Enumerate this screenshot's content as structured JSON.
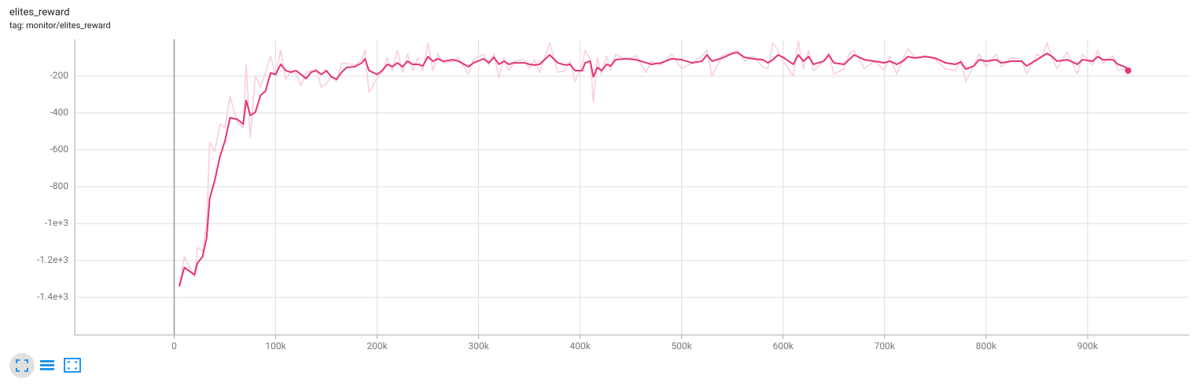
{
  "chart_data": {
    "type": "line",
    "title": "elites_reward",
    "subtitle": "tag: monitor/elites_reward",
    "x": [
      5000,
      10000,
      20000,
      23000,
      28000,
      32000,
      35000,
      40000,
      45000,
      50000,
      55000,
      62000,
      68000,
      71000,
      75000,
      80000,
      85000,
      90000,
      95000,
      100000,
      105000,
      110000,
      115000,
      120000,
      125000,
      130000,
      135000,
      140000,
      145000,
      150000,
      155000,
      160000,
      165000,
      170000,
      178000,
      185000,
      188000,
      192000,
      200000,
      205000,
      210000,
      215000,
      220000,
      225000,
      230000,
      235000,
      240000,
      245000,
      250000,
      255000,
      260000,
      265000,
      275000,
      280000,
      290000,
      295000,
      305000,
      310000,
      315000,
      320000,
      325000,
      330000,
      335000,
      345000,
      350000,
      355000,
      360000,
      370000,
      378000,
      385000,
      390000,
      395000,
      402000,
      405000,
      410000,
      413000,
      417000,
      421000,
      426000,
      430000,
      435000,
      445000,
      455000,
      465000,
      470000,
      480000,
      490000,
      500000,
      510000,
      520000,
      525000,
      530000,
      540000,
      550000,
      555000,
      562000,
      570000,
      580000,
      585000,
      590000,
      595000,
      600000,
      610000,
      615000,
      620000,
      625000,
      630000,
      640000,
      645000,
      650000,
      660000,
      665000,
      670000,
      680000,
      690000,
      700000,
      705000,
      712000,
      718000,
      723000,
      730000,
      740000,
      750000,
      760000,
      770000,
      775000,
      780000,
      788000,
      793000,
      800000,
      810000,
      815000,
      825000,
      835000,
      840000,
      850000,
      855000,
      860000,
      865000,
      870000,
      880000,
      890000,
      895000,
      905000,
      910000,
      915000,
      925000,
      930000,
      938000,
      940000
    ],
    "series": [
      {
        "color": "#f9cfdf",
        "values": [
          -1340,
          -1180,
          -1290,
          -1130,
          -1150,
          -1000,
          -560,
          -610,
          -460,
          -480,
          -310,
          -450,
          -480,
          -140,
          -530,
          -200,
          -260,
          -180,
          -90,
          -200,
          -60,
          -220,
          -170,
          -190,
          -250,
          -180,
          -170,
          -160,
          -260,
          -240,
          -200,
          -230,
          -130,
          -130,
          -140,
          -110,
          -60,
          -290,
          -210,
          -180,
          -100,
          -170,
          -60,
          -180,
          -80,
          -170,
          -100,
          -170,
          -20,
          -170,
          -80,
          -130,
          -120,
          -100,
          -190,
          -110,
          -80,
          -140,
          -80,
          -210,
          -100,
          -170,
          -120,
          -110,
          -160,
          -110,
          -180,
          -20,
          -180,
          -170,
          -120,
          -230,
          -140,
          -60,
          -110,
          -340,
          -100,
          -190,
          -90,
          -170,
          -80,
          -110,
          -90,
          -180,
          -120,
          -140,
          -80,
          -160,
          -130,
          -90,
          -60,
          -200,
          -90,
          -70,
          -60,
          -120,
          -90,
          -150,
          -160,
          -20,
          -60,
          -120,
          -200,
          -10,
          -160,
          -60,
          -170,
          -120,
          -70,
          -190,
          -160,
          -80,
          -60,
          -160,
          -120,
          -170,
          -90,
          -190,
          -110,
          -50,
          -100,
          -90,
          -110,
          -160,
          -170,
          -110,
          -230,
          -140,
          -80,
          -150,
          -80,
          -150,
          -100,
          -110,
          -190,
          -80,
          -100,
          -20,
          -100,
          -160,
          -70,
          -190,
          -80,
          -140,
          -60,
          -130,
          -90,
          -170,
          -160,
          -200
        ]
      },
      {
        "color": "#e8336f",
        "values": [
          -1340,
          -1238,
          -1277,
          -1213,
          -1179,
          -1077,
          -864,
          -766,
          -638,
          -553,
          -426,
          -434,
          -460,
          -332,
          -413,
          -396,
          -306,
          -281,
          -183,
          -191,
          -136,
          -170,
          -179,
          -170,
          -191,
          -213,
          -179,
          -170,
          -191,
          -170,
          -204,
          -217,
          -179,
          -153,
          -149,
          -128,
          -106,
          -170,
          -191,
          -170,
          -136,
          -149,
          -128,
          -149,
          -119,
          -136,
          -136,
          -145,
          -94,
          -119,
          -106,
          -119,
          -111,
          -119,
          -149,
          -128,
          -106,
          -128,
          -98,
          -136,
          -119,
          -136,
          -128,
          -128,
          -136,
          -140,
          -136,
          -85,
          -128,
          -140,
          -136,
          -170,
          -170,
          -128,
          -119,
          -204,
          -153,
          -170,
          -136,
          -145,
          -111,
          -106,
          -111,
          -128,
          -136,
          -128,
          -106,
          -111,
          -128,
          -119,
          -85,
          -119,
          -102,
          -77,
          -72,
          -98,
          -106,
          -111,
          -128,
          -111,
          -85,
          -98,
          -136,
          -85,
          -119,
          -94,
          -136,
          -119,
          -85,
          -128,
          -136,
          -111,
          -85,
          -111,
          -119,
          -128,
          -119,
          -136,
          -119,
          -94,
          -102,
          -94,
          -102,
          -128,
          -136,
          -123,
          -162,
          -145,
          -111,
          -119,
          -111,
          -128,
          -119,
          -119,
          -145,
          -111,
          -94,
          -77,
          -94,
          -119,
          -111,
          -136,
          -111,
          -119,
          -94,
          -111,
          -111,
          -136,
          -153,
          -170
        ]
      }
    ],
    "xlim": [
      -98000,
      1000000
    ],
    "xticks": [
      0,
      {
        "value": 100000,
        "label": "100k"
      },
      {
        "value": 200000,
        "label": "200k"
      },
      {
        "value": 300000,
        "label": "300k"
      },
      {
        "value": 400000,
        "label": "400k"
      },
      {
        "value": 500000,
        "label": "500k"
      },
      {
        "value": 600000,
        "label": "600k"
      },
      {
        "value": 700000,
        "label": "700k"
      },
      {
        "value": 800000,
        "label": "800k"
      },
      {
        "value": 900000,
        "label": "900k"
      }
    ],
    "ylim": [
      -1604,
      0
    ],
    "yticks": [
      {
        "value": -1400,
        "label": "-1.4e+3"
      },
      {
        "value": -1200,
        "label": "-1.2e+3"
      },
      {
        "value": -1000,
        "label": "-1e+3"
      },
      -800,
      -600,
      -400,
      -200
    ],
    "grid": true
  }
}
